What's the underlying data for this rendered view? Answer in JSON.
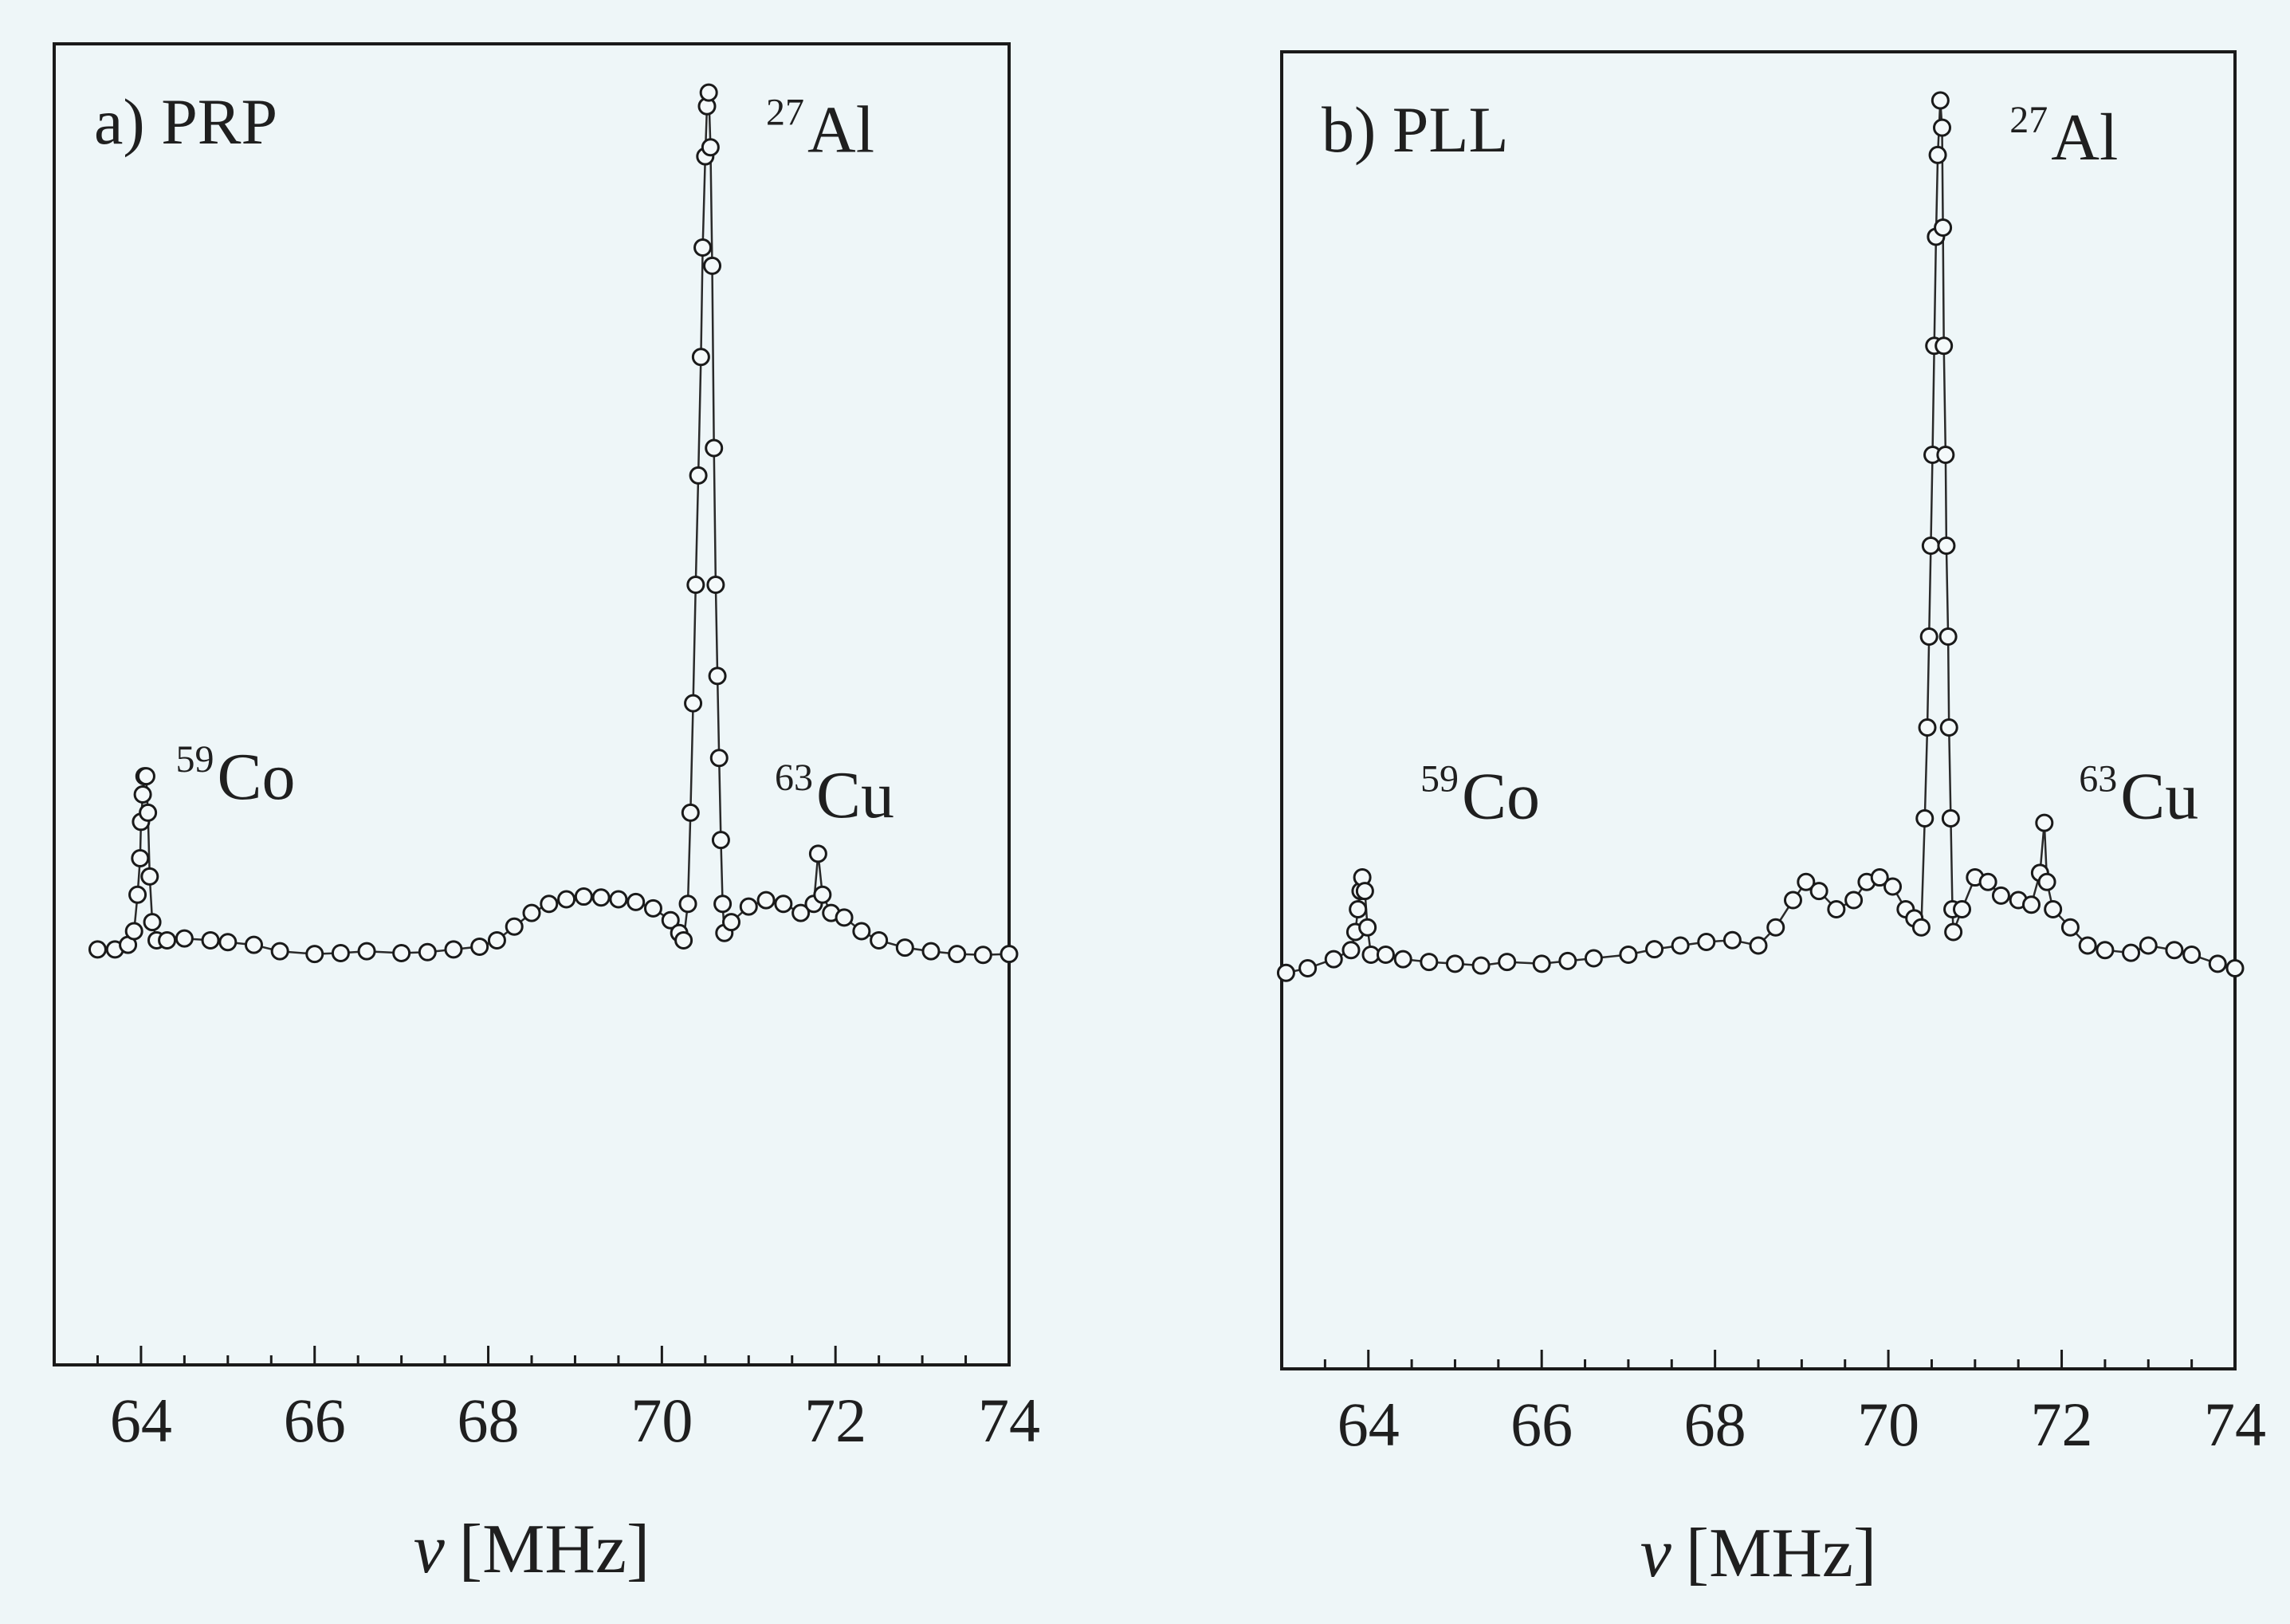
{
  "chart_data": [
    {
      "type": "line",
      "panel_label": "a) PRP",
      "xlabel_symbol": "ν",
      "xlabel_unit": "[MHz]",
      "xlim": [
        63.0,
        74.0
      ],
      "x_ticks": [
        64,
        66,
        68,
        70,
        72,
        74
      ],
      "minor_tick_step": 0.5,
      "ylim": [
        0,
        1
      ],
      "y_ticks_shown": false,
      "grid": false,
      "legend": "none",
      "annotations": [
        {
          "mass": "59",
          "element": "Co",
          "x": 64.4,
          "y": 0.215
        },
        {
          "mass": "27",
          "element": "Al",
          "x": 71.2,
          "y": 0.925
        },
        {
          "mass": "63",
          "element": "Cu",
          "x": 71.3,
          "y": 0.195
        }
      ],
      "series": [
        {
          "marker": "open-circle",
          "points": [
            [
              63.5,
              0.05
            ],
            [
              63.7,
              0.05
            ],
            [
              63.85,
              0.055
            ],
            [
              63.92,
              0.07
            ],
            [
              63.96,
              0.11
            ],
            [
              63.99,
              0.15
            ],
            [
              64.0,
              0.19
            ],
            [
              64.02,
              0.22
            ],
            [
              64.04,
              0.24
            ],
            [
              64.06,
              0.24
            ],
            [
              64.08,
              0.2
            ],
            [
              64.1,
              0.13
            ],
            [
              64.13,
              0.08
            ],
            [
              64.18,
              0.06
            ],
            [
              64.3,
              0.06
            ],
            [
              64.5,
              0.062
            ],
            [
              64.8,
              0.06
            ],
            [
              65.0,
              0.058
            ],
            [
              65.3,
              0.055
            ],
            [
              65.6,
              0.048
            ],
            [
              66.0,
              0.045
            ],
            [
              66.3,
              0.046
            ],
            [
              66.6,
              0.048
            ],
            [
              67.0,
              0.046
            ],
            [
              67.3,
              0.047
            ],
            [
              67.6,
              0.05
            ],
            [
              67.9,
              0.053
            ],
            [
              68.1,
              0.06
            ],
            [
              68.3,
              0.075
            ],
            [
              68.5,
              0.09
            ],
            [
              68.7,
              0.1
            ],
            [
              68.9,
              0.105
            ],
            [
              69.1,
              0.108
            ],
            [
              69.3,
              0.107
            ],
            [
              69.5,
              0.105
            ],
            [
              69.7,
              0.102
            ],
            [
              69.9,
              0.095
            ],
            [
              70.1,
              0.082
            ],
            [
              70.2,
              0.068
            ],
            [
              70.25,
              0.06
            ],
            [
              70.3,
              0.1
            ],
            [
              70.33,
              0.2
            ],
            [
              70.36,
              0.32
            ],
            [
              70.39,
              0.45
            ],
            [
              70.42,
              0.57
            ],
            [
              70.45,
              0.7
            ],
            [
              70.47,
              0.82
            ],
            [
              70.5,
              0.92
            ],
            [
              70.52,
              0.975
            ],
            [
              70.54,
              0.99
            ],
            [
              70.56,
              0.93
            ],
            [
              70.58,
              0.8
            ],
            [
              70.6,
              0.6
            ],
            [
              70.62,
              0.45
            ],
            [
              70.64,
              0.35
            ],
            [
              70.66,
              0.26
            ],
            [
              70.68,
              0.17
            ],
            [
              70.7,
              0.1
            ],
            [
              70.72,
              0.068
            ],
            [
              70.8,
              0.08
            ],
            [
              71.0,
              0.097
            ],
            [
              71.2,
              0.104
            ],
            [
              71.4,
              0.1
            ],
            [
              71.6,
              0.09
            ],
            [
              71.75,
              0.1
            ],
            [
              71.8,
              0.155
            ],
            [
              71.85,
              0.11
            ],
            [
              71.95,
              0.09
            ],
            [
              72.1,
              0.085
            ],
            [
              72.3,
              0.07
            ],
            [
              72.5,
              0.06
            ],
            [
              72.8,
              0.052
            ],
            [
              73.1,
              0.048
            ],
            [
              73.4,
              0.045
            ],
            [
              73.7,
              0.044
            ],
            [
              74.0,
              0.045
            ]
          ]
        }
      ]
    },
    {
      "type": "line",
      "panel_label": "b) PLL",
      "xlabel_symbol": "ν",
      "xlabel_unit": "[MHz]",
      "xlim": [
        63.0,
        74.0
      ],
      "x_ticks": [
        64,
        66,
        68,
        70,
        72,
        74
      ],
      "minor_tick_step": 0.5,
      "ylim": [
        0,
        1
      ],
      "y_ticks_shown": false,
      "grid": false,
      "legend": "none",
      "annotations": [
        {
          "mass": "59",
          "element": "Co",
          "x": 64.6,
          "y": 0.2
        },
        {
          "mass": "27",
          "element": "Al",
          "x": 71.4,
          "y": 0.925
        },
        {
          "mass": "63",
          "element": "Cu",
          "x": 72.2,
          "y": 0.2
        }
      ],
      "series": [
        {
          "marker": "open-circle",
          "points": [
            [
              63.05,
              0.03
            ],
            [
              63.3,
              0.035
            ],
            [
              63.6,
              0.045
            ],
            [
              63.8,
              0.055
            ],
            [
              63.85,
              0.075
            ],
            [
              63.88,
              0.1
            ],
            [
              63.91,
              0.12
            ],
            [
              63.93,
              0.135
            ],
            [
              63.96,
              0.12
            ],
            [
              63.99,
              0.08
            ],
            [
              64.03,
              0.05
            ],
            [
              64.2,
              0.05
            ],
            [
              64.4,
              0.045
            ],
            [
              64.7,
              0.042
            ],
            [
              65.0,
              0.04
            ],
            [
              65.3,
              0.038
            ],
            [
              65.6,
              0.042
            ],
            [
              66.0,
              0.04
            ],
            [
              66.3,
              0.043
            ],
            [
              66.6,
              0.046
            ],
            [
              67.0,
              0.05
            ],
            [
              67.3,
              0.056
            ],
            [
              67.6,
              0.06
            ],
            [
              67.9,
              0.064
            ],
            [
              68.2,
              0.066
            ],
            [
              68.5,
              0.06
            ],
            [
              68.7,
              0.08
            ],
            [
              68.9,
              0.11
            ],
            [
              69.05,
              0.13
            ],
            [
              69.2,
              0.12
            ],
            [
              69.4,
              0.1
            ],
            [
              69.6,
              0.11
            ],
            [
              69.75,
              0.13
            ],
            [
              69.9,
              0.135
            ],
            [
              70.05,
              0.125
            ],
            [
              70.2,
              0.1
            ],
            [
              70.3,
              0.09
            ],
            [
              70.38,
              0.08
            ],
            [
              70.42,
              0.2
            ],
            [
              70.45,
              0.3
            ],
            [
              70.47,
              0.4
            ],
            [
              70.49,
              0.5
            ],
            [
              70.51,
              0.6
            ],
            [
              70.53,
              0.72
            ],
            [
              70.55,
              0.84
            ],
            [
              70.57,
              0.93
            ],
            [
              70.6,
              0.99
            ],
            [
              70.62,
              0.96
            ],
            [
              70.63,
              0.85
            ],
            [
              70.64,
              0.72
            ],
            [
              70.66,
              0.6
            ],
            [
              70.67,
              0.5
            ],
            [
              70.69,
              0.4
            ],
            [
              70.7,
              0.3
            ],
            [
              70.72,
              0.2
            ],
            [
              70.74,
              0.1
            ],
            [
              70.75,
              0.075
            ],
            [
              70.85,
              0.1
            ],
            [
              71.0,
              0.135
            ],
            [
              71.15,
              0.13
            ],
            [
              71.3,
              0.115
            ],
            [
              71.5,
              0.11
            ],
            [
              71.65,
              0.105
            ],
            [
              71.75,
              0.14
            ],
            [
              71.8,
              0.195
            ],
            [
              71.83,
              0.13
            ],
            [
              71.9,
              0.1
            ],
            [
              72.1,
              0.08
            ],
            [
              72.3,
              0.06
            ],
            [
              72.5,
              0.055
            ],
            [
              72.8,
              0.052
            ],
            [
              73.0,
              0.06
            ],
            [
              73.3,
              0.055
            ],
            [
              73.5,
              0.05
            ],
            [
              73.8,
              0.04
            ],
            [
              74.0,
              0.035
            ]
          ]
        }
      ]
    }
  ]
}
